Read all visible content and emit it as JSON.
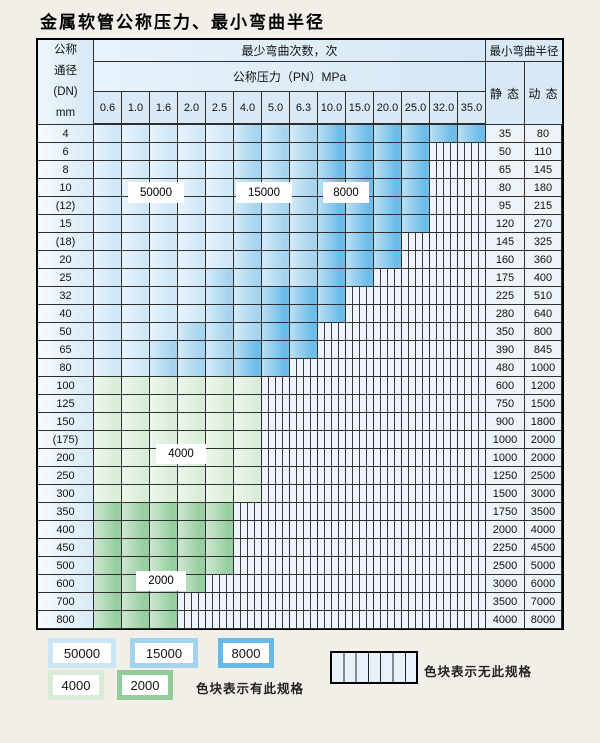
{
  "title": "金属软管公称压力、最小弯曲半径",
  "colors": {
    "50000": "#cde6f6",
    "15000": "#a2d3ef",
    "8000": "#66b9e8",
    "4000": "#d8ecd7",
    "2000": "#92cc9b",
    "none_bg": "#eef4fb",
    "header_bg": "#d9eaf6",
    "grid_line": "#2f2f2f"
  },
  "table": {
    "header": {
      "dn_lines": [
        "公称",
        "通径",
        "(DN)",
        "mm"
      ],
      "cycles_header": "最少弯曲次数，次",
      "pressure_header": "公称压力（PN）MPa",
      "radius_header": "最小弯曲半径",
      "static_label": "静 态",
      "dynamic_label": "动 态",
      "pressures": [
        "0.6",
        "1.0",
        "1.6",
        "2.0",
        "2.5",
        "4.0",
        "5.0",
        "6.3",
        "10.0",
        "15.0",
        "20.0",
        "25.0",
        "32.0",
        "35.0"
      ]
    },
    "zone_labels": [
      {
        "text": "50000"
      },
      {
        "text": "15000"
      },
      {
        "text": "8000"
      },
      {
        "text": "4000"
      },
      {
        "text": "2000"
      }
    ],
    "rows": [
      {
        "dn": "4",
        "static": "35",
        "dynamic": "80",
        "zones": [
          [
            "50000",
            5
          ],
          [
            "15000",
            3
          ],
          [
            "8000",
            6
          ]
        ]
      },
      {
        "dn": "6",
        "static": "50",
        "dynamic": "110",
        "zones": [
          [
            "50000",
            5
          ],
          [
            "15000",
            3
          ],
          [
            "8000",
            4
          ],
          [
            "none",
            2
          ]
        ]
      },
      {
        "dn": "8",
        "static": "65",
        "dynamic": "145",
        "zones": [
          [
            "50000",
            5
          ],
          [
            "15000",
            3
          ],
          [
            "8000",
            4
          ],
          [
            "none",
            2
          ]
        ]
      },
      {
        "dn": "10",
        "static": "80",
        "dynamic": "180",
        "zones": [
          [
            "50000",
            5
          ],
          [
            "15000",
            3
          ],
          [
            "8000",
            4
          ],
          [
            "none",
            2
          ]
        ]
      },
      {
        "dn": "(12)",
        "static": "95",
        "dynamic": "215",
        "zones": [
          [
            "50000",
            5
          ],
          [
            "15000",
            3
          ],
          [
            "8000",
            4
          ],
          [
            "none",
            2
          ]
        ]
      },
      {
        "dn": "15",
        "static": "120",
        "dynamic": "270",
        "zones": [
          [
            "50000",
            5
          ],
          [
            "15000",
            3
          ],
          [
            "8000",
            4
          ],
          [
            "none",
            2
          ]
        ]
      },
      {
        "dn": "(18)",
        "static": "145",
        "dynamic": "325",
        "zones": [
          [
            "50000",
            5
          ],
          [
            "15000",
            3
          ],
          [
            "8000",
            3
          ],
          [
            "none",
            3
          ]
        ]
      },
      {
        "dn": "20",
        "static": "160",
        "dynamic": "360",
        "zones": [
          [
            "50000",
            5
          ],
          [
            "15000",
            3
          ],
          [
            "8000",
            3
          ],
          [
            "none",
            3
          ]
        ]
      },
      {
        "dn": "25",
        "static": "175",
        "dynamic": "400",
        "zones": [
          [
            "50000",
            4
          ],
          [
            "15000",
            4
          ],
          [
            "8000",
            2
          ],
          [
            "none",
            4
          ]
        ]
      },
      {
        "dn": "32",
        "static": "225",
        "dynamic": "510",
        "zones": [
          [
            "50000",
            4
          ],
          [
            "15000",
            2
          ],
          [
            "8000",
            3
          ],
          [
            "none",
            5
          ]
        ]
      },
      {
        "dn": "40",
        "static": "280",
        "dynamic": "640",
        "zones": [
          [
            "50000",
            4
          ],
          [
            "15000",
            2
          ],
          [
            "8000",
            3
          ],
          [
            "none",
            5
          ]
        ]
      },
      {
        "dn": "50",
        "static": "350",
        "dynamic": "800",
        "zones": [
          [
            "50000",
            3
          ],
          [
            "15000",
            3
          ],
          [
            "8000",
            2
          ],
          [
            "none",
            6
          ]
        ]
      },
      {
        "dn": "65",
        "static": "390",
        "dynamic": "845",
        "zones": [
          [
            "50000",
            2
          ],
          [
            "15000",
            3
          ],
          [
            "8000",
            3
          ],
          [
            "none",
            6
          ]
        ]
      },
      {
        "dn": "80",
        "static": "480",
        "dynamic": "1000",
        "zones": [
          [
            "50000",
            2
          ],
          [
            "15000",
            3
          ],
          [
            "8000",
            2
          ],
          [
            "none",
            7
          ]
        ]
      },
      {
        "dn": "100",
        "static": "600",
        "dynamic": "1200",
        "zones": [
          [
            "4000",
            6
          ],
          [
            "none",
            8
          ]
        ]
      },
      {
        "dn": "125",
        "static": "750",
        "dynamic": "1500",
        "zones": [
          [
            "4000",
            6
          ],
          [
            "none",
            8
          ]
        ]
      },
      {
        "dn": "150",
        "static": "900",
        "dynamic": "1800",
        "zones": [
          [
            "4000",
            6
          ],
          [
            "none",
            8
          ]
        ]
      },
      {
        "dn": "(175)",
        "static": "1000",
        "dynamic": "2000",
        "zones": [
          [
            "4000",
            6
          ],
          [
            "none",
            8
          ]
        ]
      },
      {
        "dn": "200",
        "static": "1000",
        "dynamic": "2000",
        "zones": [
          [
            "4000",
            6
          ],
          [
            "none",
            8
          ]
        ]
      },
      {
        "dn": "250",
        "static": "1250",
        "dynamic": "2500",
        "zones": [
          [
            "4000",
            6
          ],
          [
            "none",
            8
          ]
        ]
      },
      {
        "dn": "300",
        "static": "1500",
        "dynamic": "3000",
        "zones": [
          [
            "4000",
            6
          ],
          [
            "none",
            8
          ]
        ]
      },
      {
        "dn": "350",
        "static": "1750",
        "dynamic": "3500",
        "zones": [
          [
            "2000",
            5
          ],
          [
            "none",
            9
          ]
        ]
      },
      {
        "dn": "400",
        "static": "2000",
        "dynamic": "4000",
        "zones": [
          [
            "2000",
            5
          ],
          [
            "none",
            9
          ]
        ]
      },
      {
        "dn": "450",
        "static": "2250",
        "dynamic": "4500",
        "zones": [
          [
            "2000",
            5
          ],
          [
            "none",
            9
          ]
        ]
      },
      {
        "dn": "500",
        "static": "2500",
        "dynamic": "5000",
        "zones": [
          [
            "2000",
            5
          ],
          [
            "none",
            9
          ]
        ]
      },
      {
        "dn": "600",
        "static": "3000",
        "dynamic": "6000",
        "zones": [
          [
            "2000",
            4
          ],
          [
            "none",
            10
          ]
        ]
      },
      {
        "dn": "700",
        "static": "3500",
        "dynamic": "7000",
        "zones": [
          [
            "2000",
            3
          ],
          [
            "none",
            11
          ]
        ]
      },
      {
        "dn": "800",
        "static": "4000",
        "dynamic": "8000",
        "zones": [
          [
            "2000",
            3
          ],
          [
            "none",
            11
          ]
        ]
      }
    ]
  },
  "legend": {
    "chips": [
      {
        "label": "50000",
        "zone": "50000"
      },
      {
        "label": "15000",
        "zone": "15000"
      },
      {
        "label": "8000",
        "zone": "8000"
      },
      {
        "label": "4000",
        "zone": "4000"
      },
      {
        "label": "2000",
        "zone": "2000"
      }
    ],
    "has_spec_note": "色块表示有此规格",
    "no_spec_note": "色块表示无此规格"
  }
}
